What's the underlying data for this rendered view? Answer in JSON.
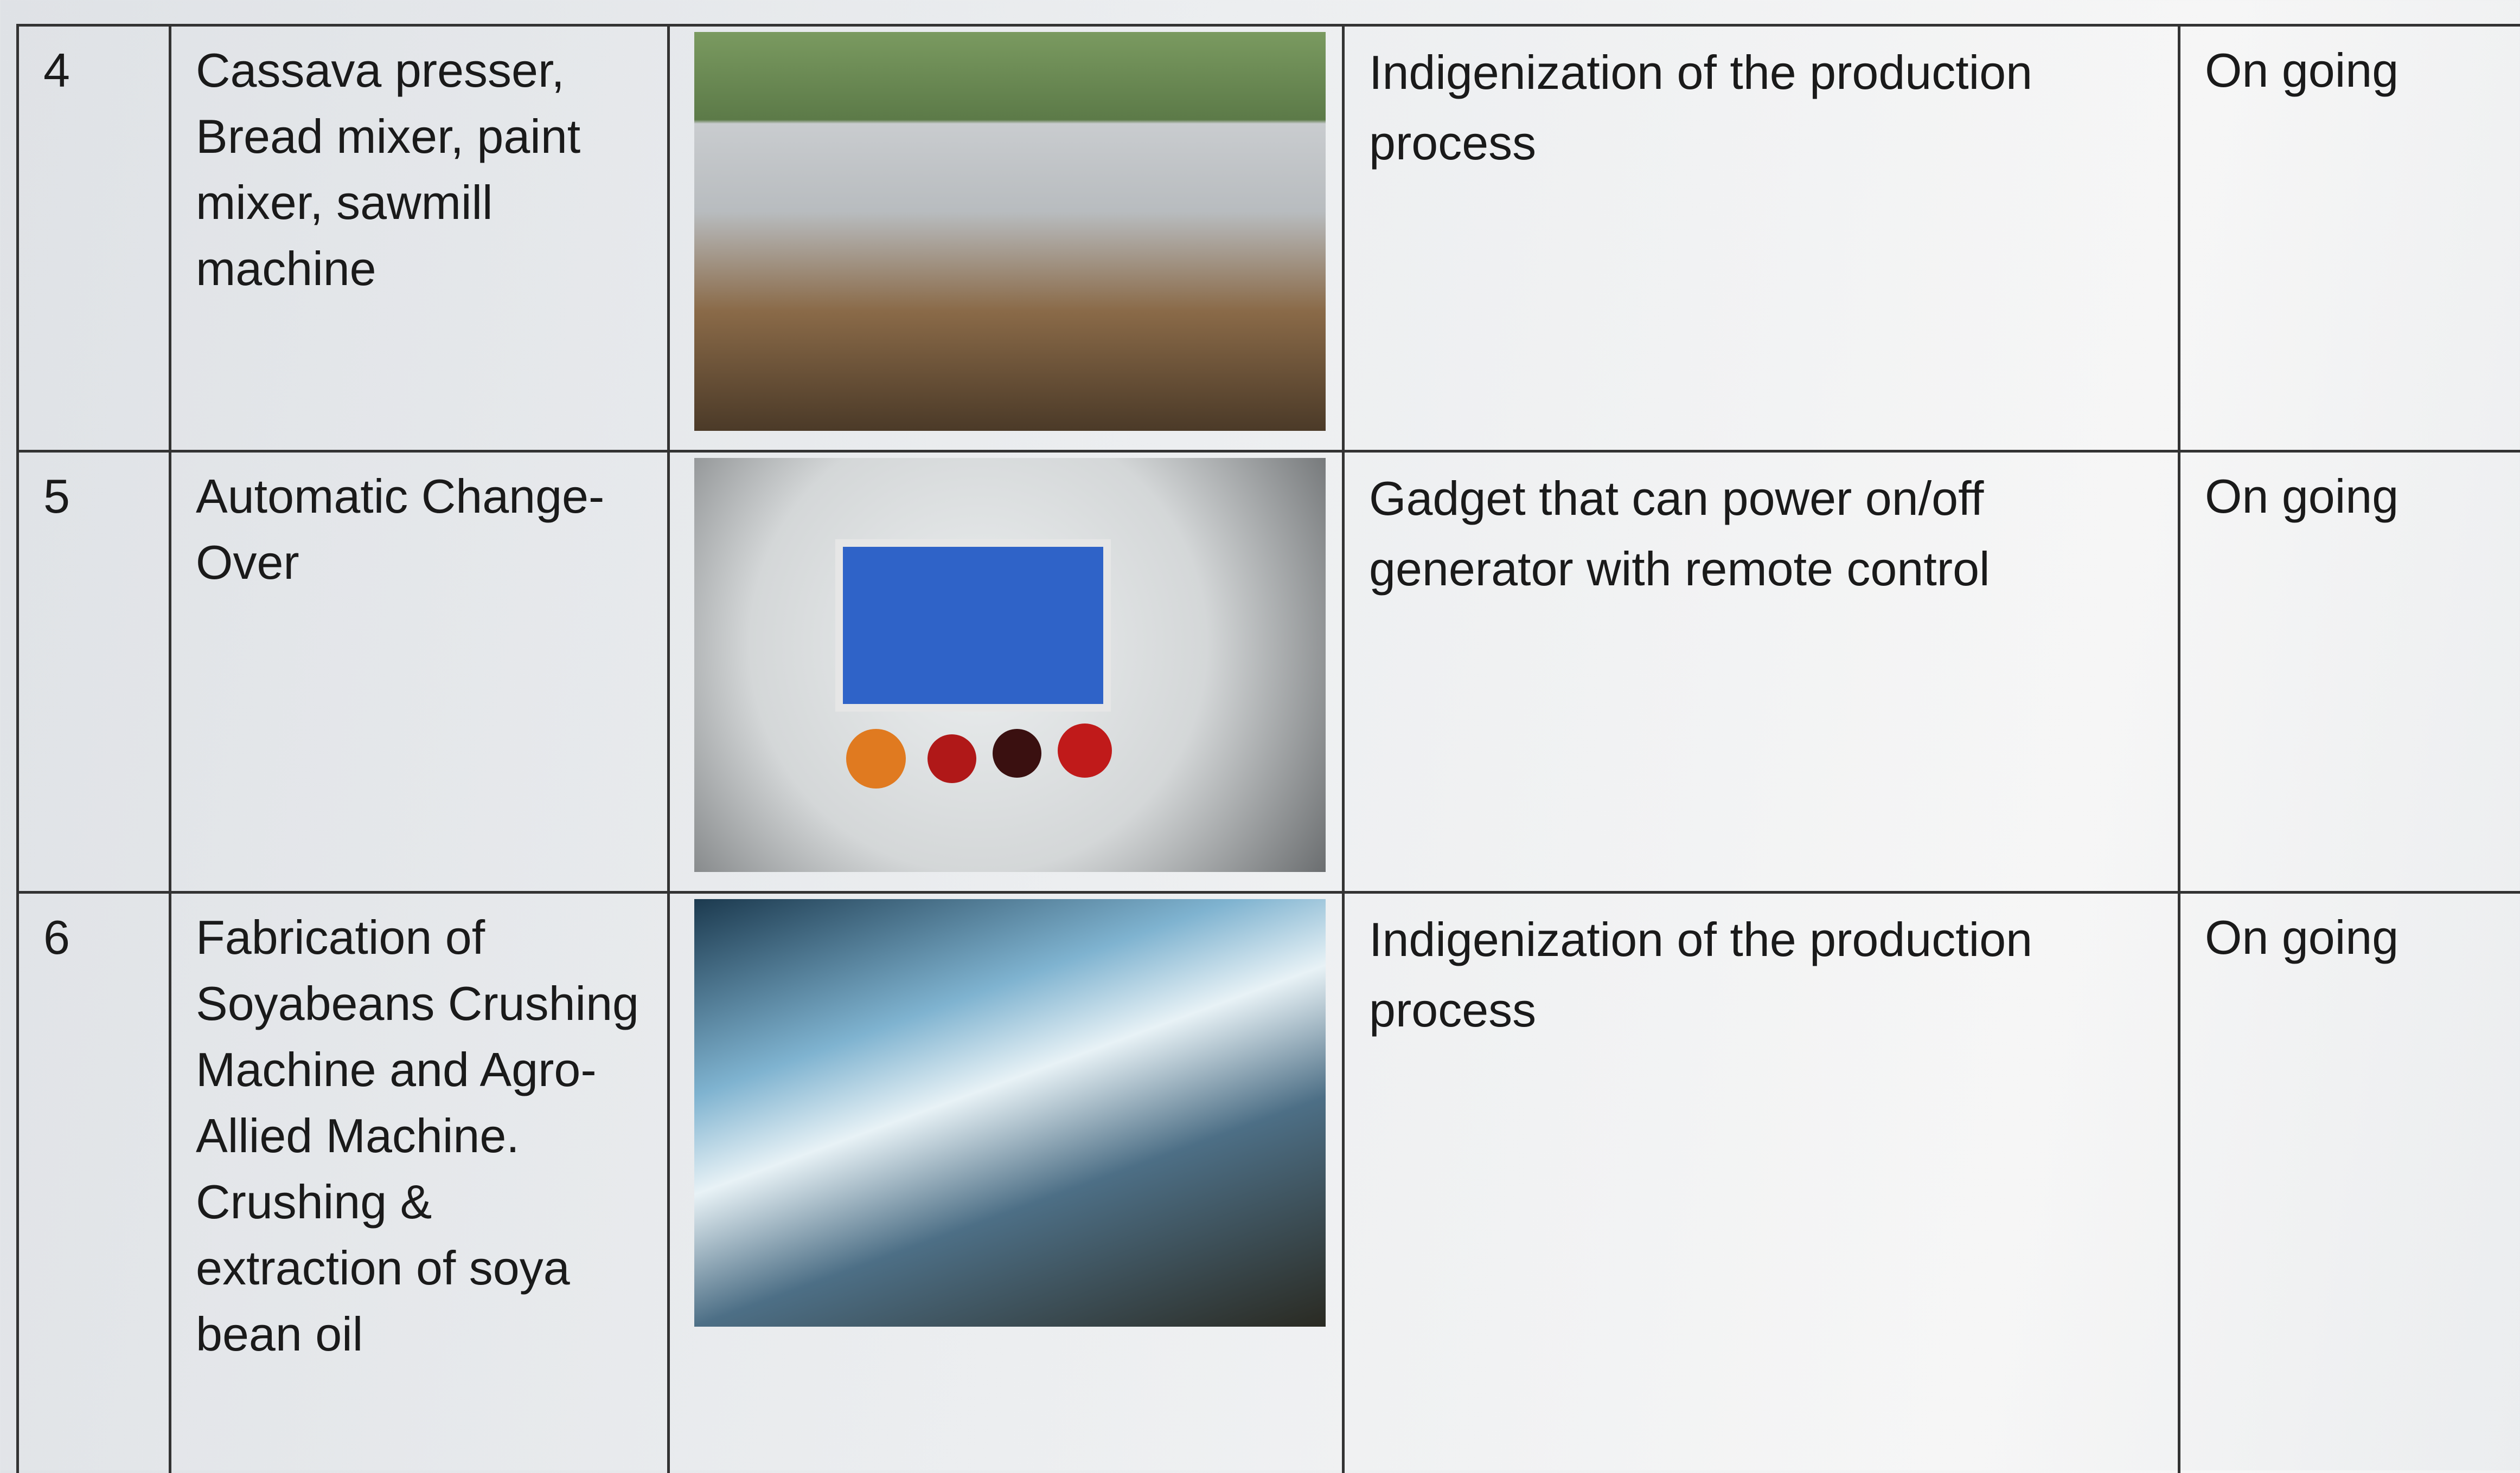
{
  "table": {
    "rows": [
      {
        "number": "4",
        "item": "Cassava presser, Bread mixer, paint mixer, sawmill machine",
        "description": "Indigenization of the production process",
        "status": "On going"
      },
      {
        "number": "5",
        "item": "Automatic Change-Over",
        "description": "Gadget that can power on/off generator with remote control",
        "status": "On going"
      },
      {
        "number": "6",
        "item": "Fabrication of Soyabeans Crushing Machine and Agro-Allied Machine. Crushing & extraction of soya bean oil",
        "description": "Indigenization of the production process",
        "status": "On going"
      }
    ]
  }
}
